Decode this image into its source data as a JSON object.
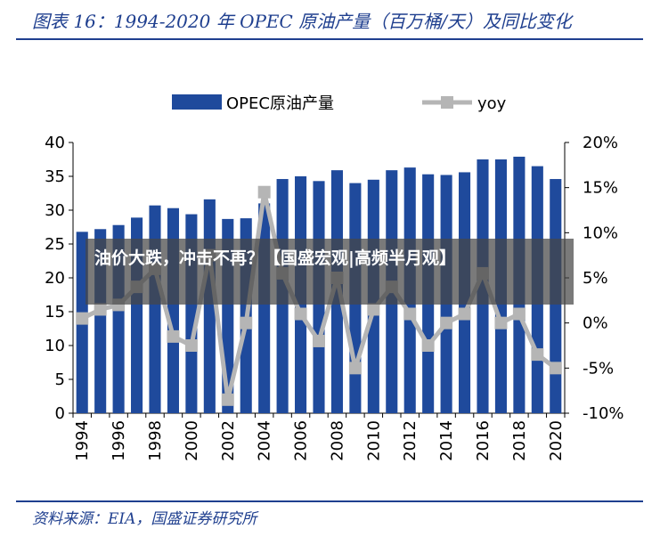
{
  "header": {
    "title": "图表 16：1994-2020 年 OPEC 原油产量（百万桶/天）及同比变化"
  },
  "footer": {
    "source": "资料来源：EIA，国盛证券研究所"
  },
  "overlay": {
    "headline": "油价大跌，冲击不再？【国盛宏观|高频半月观】"
  },
  "colors": {
    "bar": "#1f4a9c",
    "line": "#b5b5b5",
    "accent": "#1f3f8f"
  },
  "chart_data": {
    "type": "bar",
    "categories": [
      "1994",
      "1995",
      "1996",
      "1997",
      "1998",
      "1999",
      "2000",
      "2001",
      "2002",
      "2003",
      "2004",
      "2005",
      "2006",
      "2007",
      "2008",
      "2009",
      "2010",
      "2011",
      "2012",
      "2013",
      "2014",
      "2015",
      "2016",
      "2017",
      "2018",
      "2019",
      "2020"
    ],
    "x_tick_labels": [
      "1994",
      "1996",
      "1998",
      "2000",
      "2002",
      "2004",
      "2006",
      "2008",
      "2010",
      "2012",
      "2014",
      "2016",
      "2018",
      "2020"
    ],
    "series": [
      {
        "name": "OPEC原油产量",
        "axis": "left",
        "type": "bar",
        "values": [
          26.8,
          27.2,
          27.8,
          28.9,
          30.7,
          30.3,
          29.4,
          31.6,
          28.7,
          28.8,
          31.0,
          34.6,
          35.0,
          34.3,
          35.9,
          34.0,
          34.5,
          35.9,
          36.3,
          35.3,
          35.2,
          35.6,
          37.5,
          37.5,
          37.9,
          36.5,
          34.6
        ]
      },
      {
        "name": "yoy",
        "axis": "right",
        "type": "line",
        "values": [
          0.5,
          1.5,
          2.0,
          4.0,
          6.0,
          -1.5,
          -2.5,
          7.5,
          -8.5,
          0.0,
          14.5,
          5.5,
          1.0,
          -2.0,
          5.0,
          -5.0,
          1.5,
          4.0,
          1.0,
          -2.5,
          0.0,
          1.0,
          5.5,
          0.0,
          1.0,
          -3.5,
          -5.0
        ]
      }
    ],
    "y_left": {
      "range": [
        0,
        40
      ],
      "ticks": [
        "0",
        "5",
        "10",
        "15",
        "20",
        "25",
        "30",
        "35",
        "40"
      ]
    },
    "y_right": {
      "range": [
        -10,
        20
      ],
      "ticks": [
        "-10%",
        "-5%",
        "0%",
        "5%",
        "10%",
        "15%",
        "20%"
      ]
    },
    "legend": {
      "placement": "top",
      "entries": [
        "OPEC原油产量",
        "yoy"
      ]
    },
    "grid": false
  }
}
